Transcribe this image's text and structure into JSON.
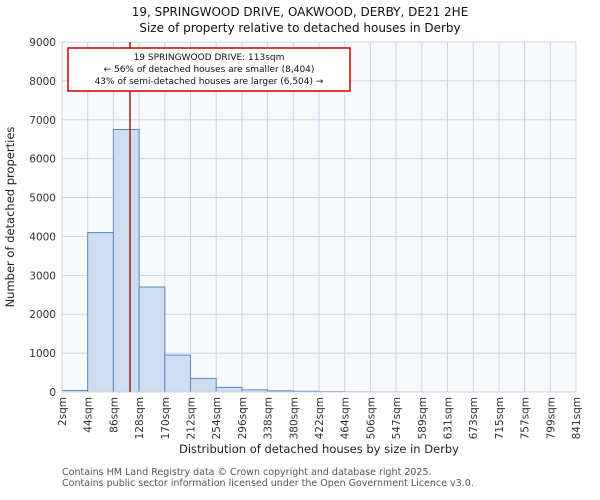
{
  "header": {
    "title": "19, SPRINGWOOD DRIVE, OAKWOOD, DERBY, DE21 2HE",
    "subtitle": "Size of property relative to detached houses in Derby"
  },
  "chart_data": {
    "type": "bar",
    "bin_labels": [
      "2sqm",
      "44sqm",
      "86sqm",
      "128sqm",
      "170sqm",
      "212sqm",
      "254sqm",
      "296sqm",
      "338sqm",
      "380sqm",
      "422sqm",
      "464sqm",
      "506sqm",
      "547sqm",
      "589sqm",
      "631sqm",
      "673sqm",
      "715sqm",
      "757sqm",
      "799sqm",
      "841sqm"
    ],
    "values": [
      40,
      4100,
      6750,
      2700,
      950,
      350,
      120,
      55,
      30,
      18,
      10,
      5,
      3,
      2,
      1,
      1,
      0,
      0,
      0,
      0
    ],
    "title": "19, SPRINGWOOD DRIVE, OAKWOOD, DERBY, DE21 2HE",
    "subtitle": "Size of property relative to detached houses in Derby",
    "xlabel": "Distribution of detached houses by size in Derby",
    "ylabel": "Number of detached properties",
    "ylim": [
      0,
      9000
    ],
    "ytick_step": 1000,
    "grid": "on",
    "marker_value_sqm": 113,
    "annotation": {
      "line1": "19 SPRINGWOOD DRIVE: 113sqm",
      "line2": "← 56% of detached houses are smaller (8,404)",
      "line3": "43% of semi-detached houses are larger (6,504) →"
    },
    "colors": {
      "bar_fill": "#cfddf0",
      "bar_border": "#5b8ac5",
      "grid": "#ccd4e4",
      "plot_bg": "#f8f9fd",
      "marker_line": "#991111",
      "annotation_border": "#cc0000",
      "annotation_bg": "#ffffff"
    }
  },
  "footer": {
    "line1": "Contains HM Land Registry data © Crown copyright and database right 2025.",
    "line2": "Contains public sector information licensed under the Open Government Licence v3.0."
  }
}
